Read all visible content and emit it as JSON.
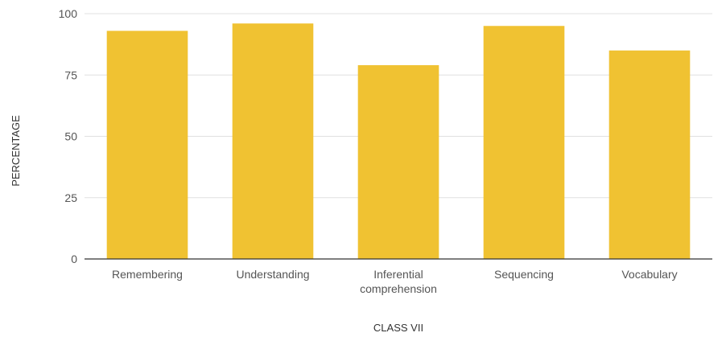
{
  "chart_data": {
    "type": "bar",
    "title": "",
    "xlabel": "CLASS VII",
    "ylabel": "PERCENTAGE",
    "categories": [
      "Remembering",
      "Understanding",
      "Inferential comprehension",
      "Sequencing",
      "Vocabulary"
    ],
    "category_lines": [
      [
        "Remembering"
      ],
      [
        "Understanding"
      ],
      [
        "Inferential",
        "comprehension"
      ],
      [
        "Sequencing"
      ],
      [
        "Vocabulary"
      ]
    ],
    "values": [
      93,
      96,
      79,
      95,
      85
    ],
    "ylim": [
      0,
      100
    ],
    "yticks": [
      0,
      25,
      50,
      75,
      100
    ],
    "grid": true,
    "legend": "none",
    "bar_color": "#f0c232",
    "grid_color": "#e0e0e0",
    "axis_color": "#333333",
    "label_color": "#555555"
  }
}
